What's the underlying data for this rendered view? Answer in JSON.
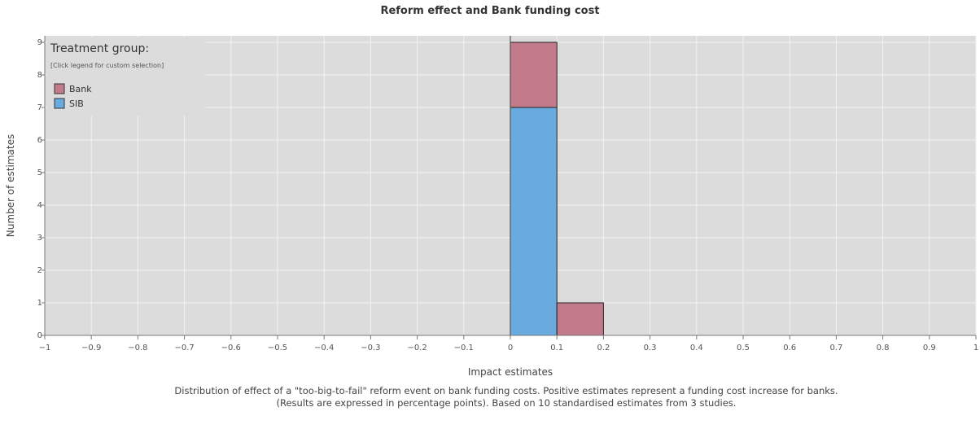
{
  "chart_data": {
    "type": "bar",
    "stacked": true,
    "title": "Reform effect and Bank funding cost",
    "xlabel": "Impact estimates",
    "ylabel": "Number of estimates",
    "xlim": [
      -1,
      1
    ],
    "ylim": [
      0,
      9
    ],
    "x_ticks": [
      "−1",
      "−0.9",
      "−0.8",
      "−0.7",
      "−0.6",
      "−0.5",
      "−0.4",
      "−0.3",
      "−0.2",
      "−0.1",
      "0",
      "0.1",
      "0.2",
      "0.3",
      "0.4",
      "0.5",
      "0.6",
      "0.7",
      "0.8",
      "0.9",
      "1"
    ],
    "y_ticks": [
      0,
      1,
      2,
      3,
      4,
      5,
      6,
      7,
      8,
      9
    ],
    "bin_width": 0.1,
    "bins": [
      0,
      0.1
    ],
    "series": [
      {
        "name": "SIB",
        "color": "#6aabdf",
        "values": [
          7,
          0
        ]
      },
      {
        "name": "Bank",
        "color": "#c27b8a",
        "values": [
          2,
          1
        ]
      }
    ],
    "grid": true,
    "legend": {
      "title": "Treatment group:",
      "subtitle": "[Click legend for custom selection]",
      "placement": "top-left",
      "entries": [
        "Bank",
        "SIB"
      ]
    },
    "caption": "Distribution of effect of a \"too-big-to-fail\" reform event on bank funding costs. Positive estimates represent a funding cost increase for banks. (Results are expressed in percentage points). Based on 10 standardised estimates from 3 studies."
  }
}
